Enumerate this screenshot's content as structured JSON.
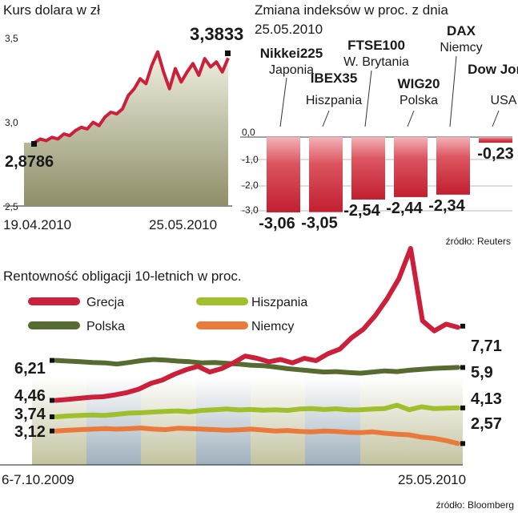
{
  "charts": {
    "usd": {
      "title": "Kurs dolara w zł",
      "start_label": "2,8786",
      "end_label": "3,3833",
      "start_date": "19.04.2010",
      "end_date": "25.05.2010"
    },
    "indices": {
      "title_line1": "Zmiana indeksów w proc. z dnia",
      "title_line2": "25.05.2010",
      "source": "źródło: Reuters"
    },
    "bonds": {
      "title": "Rentowność obligacji 10-letnich w proc.",
      "start_date": "6-7.10.2009",
      "end_date": "25.05.2010",
      "source": "źródło: Bloomberg",
      "legend": [
        "Grecja",
        "Hiszpania",
        "Polska",
        "Niemcy"
      ]
    }
  },
  "chart_data": [
    {
      "type": "area",
      "title": "Kurs dolara w zł",
      "x_range": [
        "19.04.2010",
        "25.05.2010"
      ],
      "ylim": [
        2.5,
        3.5
      ],
      "yticks": [
        "2,5",
        "3,0",
        "3,5"
      ],
      "color": "#cc1f3a",
      "series": [
        {
          "values": [
            2.8786,
            2.9,
            2.89,
            2.91,
            2.9,
            2.93,
            2.92,
            2.95,
            2.97,
            2.96,
            3.0,
            2.98,
            3.03,
            3.06,
            3.05,
            3.08,
            3.16,
            3.2,
            3.26,
            3.23,
            3.34,
            3.42,
            3.3,
            3.2,
            3.32,
            3.24,
            3.3,
            3.35,
            3.28,
            3.38,
            3.33,
            3.36,
            3.3,
            3.3833
          ]
        }
      ]
    },
    {
      "type": "bar",
      "title": "Zmiana indeksów w proc. z dnia 25.05.2010",
      "ylim": [
        -3.0,
        0.0
      ],
      "yticks": [
        "0,0",
        "-1,0",
        "-2,0",
        "-3,0"
      ],
      "categories": [
        {
          "name": "Nikkei225",
          "country": "Japonia"
        },
        {
          "name": "IBEX35",
          "country": "Hiszpania"
        },
        {
          "name": "FTSE100",
          "country": "W. Brytania"
        },
        {
          "name": "WIG20",
          "country": "Polska"
        },
        {
          "name": "DAX",
          "country": "Niemcy"
        },
        {
          "name": "Dow Jones",
          "country": "USA"
        }
      ],
      "values": [
        -3.06,
        -3.05,
        -2.54,
        -2.44,
        -2.34,
        -0.23
      ],
      "value_labels": [
        "-3,06",
        "-3,05",
        "-2,54",
        "-2,44",
        "-2,34",
        "-0,23"
      ],
      "source": "źródło: Reuters"
    },
    {
      "type": "line",
      "title": "Rentowność obligacji 10-letnich w proc.",
      "x_range": [
        "6-7.10.2009",
        "25.05.2010"
      ],
      "legend_placement": "top-left",
      "series": [
        {
          "name": "Grecja",
          "color": "#cc1f3a",
          "start": "4,46",
          "end": "7,71",
          "values": [
            4.46,
            4.5,
            4.55,
            4.6,
            4.62,
            4.7,
            4.8,
            4.95,
            5.2,
            5.35,
            5.6,
            5.8,
            5.95,
            5.7,
            5.85,
            6.1,
            6.4,
            6.3,
            6.15,
            6.25,
            6.1,
            6.3,
            6.2,
            6.5,
            6.7,
            7.2,
            7.6,
            8.4,
            9.4,
            10.6,
            12.4,
            8.1,
            7.5,
            7.9,
            7.71
          ]
        },
        {
          "name": "Hiszpania",
          "color": "#9fbf2c",
          "start": "3,74",
          "end": "4,13",
          "values": [
            3.74,
            3.78,
            3.8,
            3.82,
            3.8,
            3.85,
            3.9,
            3.92,
            3.95,
            3.98,
            4.0,
            3.96,
            4.02,
            4.05,
            4.08,
            4.04,
            4.06,
            4.03,
            4.05,
            4.02,
            4.08,
            4.1,
            4.06,
            4.09,
            4.04,
            4.05,
            4.08,
            4.1,
            4.25,
            4.05,
            4.18,
            4.1,
            4.12,
            4.13
          ]
        },
        {
          "name": "Polska",
          "color": "#556b2f",
          "start": "6,21",
          "end": "5,9",
          "values": [
            6.21,
            6.18,
            6.15,
            6.12,
            6.1,
            6.05,
            6.12,
            6.2,
            6.25,
            6.22,
            6.18,
            6.15,
            6.1,
            6.12,
            6.08,
            6.05,
            6.0,
            5.98,
            5.92,
            5.85,
            5.8,
            5.75,
            5.7,
            5.72,
            5.68,
            5.65,
            5.7,
            5.75,
            5.72,
            5.78,
            5.82,
            5.86,
            5.88,
            5.9
          ]
        },
        {
          "name": "Niemcy",
          "color": "#e97a3b",
          "start": "3,12",
          "end": "2,57",
          "values": [
            3.12,
            3.15,
            3.18,
            3.2,
            3.22,
            3.2,
            3.22,
            3.25,
            3.2,
            3.18,
            3.24,
            3.22,
            3.2,
            3.18,
            3.15,
            3.17,
            3.2,
            3.16,
            3.12,
            3.14,
            3.1,
            3.08,
            3.12,
            3.1,
            3.06,
            3.05,
            3.08,
            3.02,
            2.98,
            2.95,
            2.85,
            2.8,
            2.7,
            2.57
          ]
        }
      ],
      "source": "źródło: Bloomberg"
    }
  ]
}
